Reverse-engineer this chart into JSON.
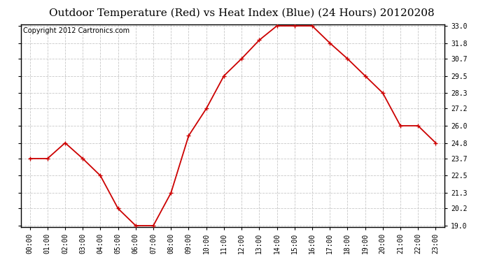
{
  "title": "Outdoor Temperature (Red) vs Heat Index (Blue) (24 Hours) 20120208",
  "copyright": "Copyright 2012 Cartronics.com",
  "x_labels": [
    "00:00",
    "01:00",
    "02:00",
    "03:00",
    "04:00",
    "05:00",
    "06:00",
    "07:00",
    "08:00",
    "09:00",
    "10:00",
    "11:00",
    "12:00",
    "13:00",
    "14:00",
    "15:00",
    "16:00",
    "17:00",
    "18:00",
    "19:00",
    "20:00",
    "21:00",
    "22:00",
    "23:00"
  ],
  "temp_values": [
    23.7,
    23.7,
    24.8,
    23.7,
    22.5,
    20.2,
    19.0,
    19.0,
    21.3,
    25.3,
    27.2,
    29.5,
    30.7,
    32.0,
    33.0,
    33.0,
    33.0,
    31.8,
    30.7,
    29.5,
    28.3,
    26.0,
    26.0,
    24.8
  ],
  "line_color_temp": "#cc0000",
  "marker": "+",
  "marker_size": 4,
  "marker_edge_width": 1.0,
  "background_color": "#ffffff",
  "plot_bg_color": "#ffffff",
  "grid_color": "#c8c8c8",
  "yticks": [
    19.0,
    20.2,
    21.3,
    22.5,
    23.7,
    24.8,
    26.0,
    27.2,
    28.3,
    29.5,
    30.7,
    31.8,
    33.0
  ],
  "ymin": 19.0,
  "ymax": 33.0,
  "title_fontsize": 11,
  "copyright_fontsize": 7,
  "tick_fontsize": 7,
  "linewidth": 1.3
}
